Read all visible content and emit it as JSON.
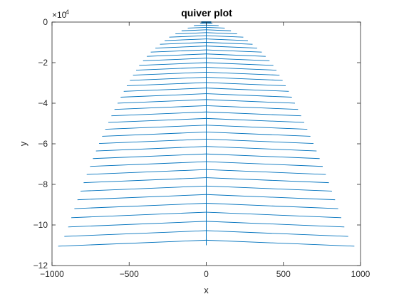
{
  "chart_data": {
    "type": "quiver",
    "title": "quiver plot",
    "xlabel": "x",
    "ylabel": "y",
    "xlim": [
      -1000,
      1000
    ],
    "ylim": [
      -120000,
      0
    ],
    "xticks": [
      -1000,
      -500,
      0,
      500,
      1000
    ],
    "xtick_labels": [
      "−1000",
      "−500",
      "0",
      "500",
      "1000"
    ],
    "yticks": [
      -120000,
      -100000,
      -80000,
      -60000,
      -40000,
      -20000,
      0
    ],
    "ytick_labels": [
      "−12",
      "−10",
      "−8",
      "−6",
      "−4",
      "−2",
      "0"
    ],
    "y_exponent_label": "×10",
    "y_exponent_power": "4",
    "grid": false,
    "series_color": "#0072BD",
    "x": [
      -1000,
      -950,
      -900,
      -850,
      -800,
      -750,
      -700,
      -650,
      -600,
      -550,
      -500,
      -450,
      -400,
      -350,
      -300,
      -250,
      -200,
      -150,
      -100,
      -50,
      0,
      50,
      100,
      150,
      200,
      250,
      300,
      350,
      400,
      450,
      500,
      550,
      600,
      650,
      700,
      750,
      800,
      850,
      900,
      950,
      1000
    ],
    "y_formula": "y = -0.11*x^2 - 110000 ... described by rows",
    "rows": [
      {
        "y_end": -500,
        "half_width": 40
      },
      {
        "y_end": -1500,
        "half_width": 80
      },
      {
        "y_end": -2600,
        "half_width": 120
      },
      {
        "y_end": -3800,
        "half_width": 160
      },
      {
        "y_end": -5200,
        "half_width": 200
      },
      {
        "y_end": -6700,
        "half_width": 240
      },
      {
        "y_end": -8300,
        "half_width": 270
      },
      {
        "y_end": -10000,
        "half_width": 300
      },
      {
        "y_end": -11800,
        "half_width": 330
      },
      {
        "y_end": -13700,
        "half_width": 360
      },
      {
        "y_end": -15700,
        "half_width": 385
      },
      {
        "y_end": -17800,
        "half_width": 410
      },
      {
        "y_end": -20000,
        "half_width": 435
      },
      {
        "y_end": -22300,
        "half_width": 455
      },
      {
        "y_end": -24700,
        "half_width": 475
      },
      {
        "y_end": -27200,
        "half_width": 495
      },
      {
        "y_end": -29800,
        "half_width": 515
      },
      {
        "y_end": -32500,
        "half_width": 535
      },
      {
        "y_end": -35300,
        "half_width": 555
      },
      {
        "y_end": -38200,
        "half_width": 575
      },
      {
        "y_end": -41200,
        "half_width": 595
      },
      {
        "y_end": -44300,
        "half_width": 615
      },
      {
        "y_end": -47500,
        "half_width": 635
      },
      {
        "y_end": -50800,
        "half_width": 655
      },
      {
        "y_end": -54200,
        "half_width": 675
      },
      {
        "y_end": -57700,
        "half_width": 695
      },
      {
        "y_end": -61300,
        "half_width": 715
      },
      {
        "y_end": -65000,
        "half_width": 735
      },
      {
        "y_end": -68800,
        "half_width": 755
      },
      {
        "y_end": -72700,
        "half_width": 775
      },
      {
        "y_end": -76700,
        "half_width": 795
      },
      {
        "y_end": -80800,
        "half_width": 815
      },
      {
        "y_end": -85000,
        "half_width": 835
      },
      {
        "y_end": -89300,
        "half_width": 855
      },
      {
        "y_end": -93700,
        "half_width": 875
      },
      {
        "y_end": -98200,
        "half_width": 895
      },
      {
        "y_end": -102800,
        "half_width": 920
      },
      {
        "y_end": -107500,
        "half_width": 960
      }
    ],
    "center_line": {
      "x": 0,
      "y_from": 0,
      "y_to": -110000
    }
  }
}
